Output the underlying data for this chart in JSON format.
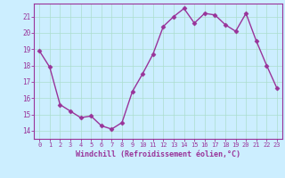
{
  "x": [
    0,
    1,
    2,
    3,
    4,
    5,
    6,
    7,
    8,
    9,
    10,
    11,
    12,
    13,
    14,
    15,
    16,
    17,
    18,
    19,
    20,
    21,
    22,
    23
  ],
  "y": [
    18.9,
    17.9,
    15.6,
    15.2,
    14.8,
    14.9,
    14.3,
    14.1,
    14.5,
    16.4,
    17.5,
    18.7,
    20.4,
    21.0,
    21.5,
    20.6,
    21.2,
    21.1,
    20.5,
    20.1,
    21.2,
    19.5,
    18.0,
    16.6
  ],
  "line_color": "#993399",
  "marker": "D",
  "markersize": 2.5,
  "linewidth": 1.0,
  "bg_color": "#cceeff",
  "grid_color": "#aaddcc",
  "xlabel": "Windchill (Refroidissement éolien,°C)",
  "xlabel_color": "#993399",
  "tick_color": "#993399",
  "label_color": "#993399",
  "spine_color": "#993399",
  "ylim": [
    13.5,
    21.8
  ],
  "xlim": [
    -0.5,
    23.5
  ],
  "yticks": [
    14,
    15,
    16,
    17,
    18,
    19,
    20,
    21
  ],
  "xticks": [
    0,
    1,
    2,
    3,
    4,
    5,
    6,
    7,
    8,
    9,
    10,
    11,
    12,
    13,
    14,
    15,
    16,
    17,
    18,
    19,
    20,
    21,
    22,
    23
  ]
}
